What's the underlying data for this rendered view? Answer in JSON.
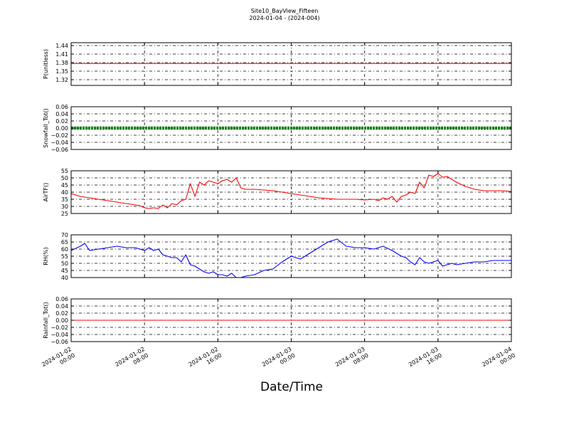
{
  "figure": {
    "title": "Site10_BayView_Fifteen",
    "subtitle": "2024-01-04 - (2024-004)",
    "xlabel": "Date/Time"
  },
  "chart_data": [
    {
      "type": "line",
      "ylabel": "P(unitless)",
      "ylim": [
        1.3,
        1.45
      ],
      "yticks": [
        1.32,
        1.35,
        1.38,
        1.41,
        1.44
      ],
      "ytick_labels": [
        "1.32",
        "1.35",
        "1.38",
        "1.41",
        "1.44"
      ],
      "x_range": [
        0,
        48
      ],
      "grid": true,
      "color": "#ff0000",
      "series": [
        {
          "x": [
            0,
            48
          ],
          "y": [
            1.377,
            1.377
          ]
        }
      ]
    },
    {
      "type": "line",
      "ylabel": "Snowfall_Tot()",
      "ylim": [
        -0.06,
        0.06
      ],
      "yticks": [
        -0.06,
        -0.04,
        -0.02,
        0.0,
        0.02,
        0.04,
        0.06
      ],
      "ytick_labels": [
        "−0.06",
        "−0.04",
        "−0.02",
        "0.00",
        "0.02",
        "0.04",
        "0.06"
      ],
      "x_range": [
        0,
        48
      ],
      "grid": true,
      "color": "#008000",
      "markers": true,
      "series": [
        {
          "x": [
            0,
            48
          ],
          "y": [
            0.0,
            0.0
          ]
        }
      ]
    },
    {
      "type": "line",
      "ylabel": "AirTF()",
      "ylim": [
        25,
        55
      ],
      "yticks": [
        25,
        30,
        35,
        40,
        45,
        50,
        55
      ],
      "ytick_labels": [
        "25",
        "30",
        "35",
        "40",
        "45",
        "50",
        "55"
      ],
      "x_range": [
        0,
        48
      ],
      "grid": true,
      "color": "#ff0000",
      "series": [
        {
          "x": [
            0,
            1,
            2,
            3,
            4,
            5,
            6,
            7,
            7.5,
            8,
            8.5,
            9,
            9.5,
            10,
            10.5,
            11,
            11.5,
            12,
            12.5,
            13,
            13.5,
            14,
            14.5,
            15,
            15.5,
            16,
            16.5,
            17,
            17.5,
            18,
            18.5,
            19,
            20,
            21,
            22,
            23,
            24,
            25,
            26,
            27,
            28,
            29,
            30,
            31,
            32,
            33,
            33.5,
            34,
            34.5,
            35,
            35.5,
            36,
            36.5,
            37,
            37.5,
            38,
            38.5,
            39,
            39.5,
            40,
            40.5,
            41,
            42,
            43,
            44,
            45,
            46,
            47,
            48
          ],
          "y": [
            39,
            37,
            36,
            35,
            34,
            33,
            32,
            31,
            30.5,
            29,
            28.5,
            29,
            28.5,
            31,
            29,
            32,
            31,
            34,
            35,
            46,
            37,
            47,
            45,
            48,
            47,
            46,
            48,
            49,
            47,
            50,
            43,
            42,
            42,
            41.5,
            41,
            40,
            39,
            38,
            37,
            36,
            35.5,
            35,
            35,
            35,
            34.5,
            35,
            34,
            36,
            35,
            37,
            33,
            37,
            38,
            40,
            39,
            47,
            43,
            52,
            51,
            53,
            50.5,
            51,
            47,
            44,
            42,
            41,
            41,
            41,
            40.5
          ]
        }
      ]
    },
    {
      "type": "line",
      "ylabel": "RH(%)",
      "ylim": [
        40,
        70
      ],
      "yticks": [
        40,
        45,
        50,
        55,
        60,
        65,
        70
      ],
      "ytick_labels": [
        "40",
        "45",
        "50",
        "55",
        "60",
        "65",
        "70"
      ],
      "x_range": [
        0,
        48
      ],
      "grid": true,
      "color": "#0000ff",
      "series": [
        {
          "x": [
            0,
            1,
            1.5,
            2,
            3,
            4,
            5,
            6,
            7,
            8,
            8.5,
            9,
            9.5,
            10,
            10.5,
            11,
            11.5,
            12,
            12.5,
            13,
            13.5,
            14,
            14.5,
            15,
            15.5,
            16,
            16.5,
            17,
            17.5,
            18,
            18.5,
            19,
            20,
            21,
            22,
            23,
            24,
            25,
            26,
            27,
            28,
            29,
            30,
            31,
            32,
            33,
            34,
            35,
            36,
            36.5,
            37,
            37.5,
            38,
            38.5,
            39,
            40,
            40.5,
            41,
            41.5,
            42,
            43,
            44,
            45,
            46,
            47,
            48
          ],
          "y": [
            59,
            62,
            64,
            59,
            60,
            61,
            62,
            61,
            61,
            59,
            61,
            59,
            60,
            56,
            55,
            54,
            54,
            51,
            56,
            49,
            48,
            46,
            44,
            43,
            44,
            42,
            42,
            41,
            43,
            40,
            40,
            41,
            42,
            45,
            46,
            51,
            55,
            53,
            57,
            61,
            65,
            67,
            62,
            61,
            61,
            60,
            62,
            59,
            55,
            54,
            51,
            49,
            54,
            51,
            50,
            52,
            48,
            49,
            50,
            49,
            50,
            51,
            51,
            52,
            52,
            52
          ]
        }
      ]
    },
    {
      "type": "line",
      "ylabel": "Rainfall_Tot()",
      "ylim": [
        -0.06,
        0.06
      ],
      "yticks": [
        -0.06,
        -0.04,
        -0.02,
        0.0,
        0.02,
        0.04,
        0.06
      ],
      "ytick_labels": [
        "−0.06",
        "−0.04",
        "−0.02",
        "0.00",
        "0.02",
        "0.04",
        "0.06"
      ],
      "x_range": [
        0,
        48
      ],
      "grid": true,
      "color": "#ff0000",
      "series": [
        {
          "x": [
            0,
            48
          ],
          "y": [
            0.0,
            0.0
          ]
        }
      ]
    }
  ],
  "xaxis": {
    "ticks": [
      0,
      8,
      16,
      24,
      32,
      40,
      48
    ],
    "tick_labels": [
      [
        "2024-01-02",
        "00:00"
      ],
      [
        "2024-01-02",
        "08:00"
      ],
      [
        "2024-01-02",
        "16:00"
      ],
      [
        "2024-01-03",
        "00:00"
      ],
      [
        "2024-01-03",
        "08:00"
      ],
      [
        "2024-01-03",
        "16:00"
      ],
      [
        "2024-01-04",
        "00:00"
      ]
    ]
  }
}
